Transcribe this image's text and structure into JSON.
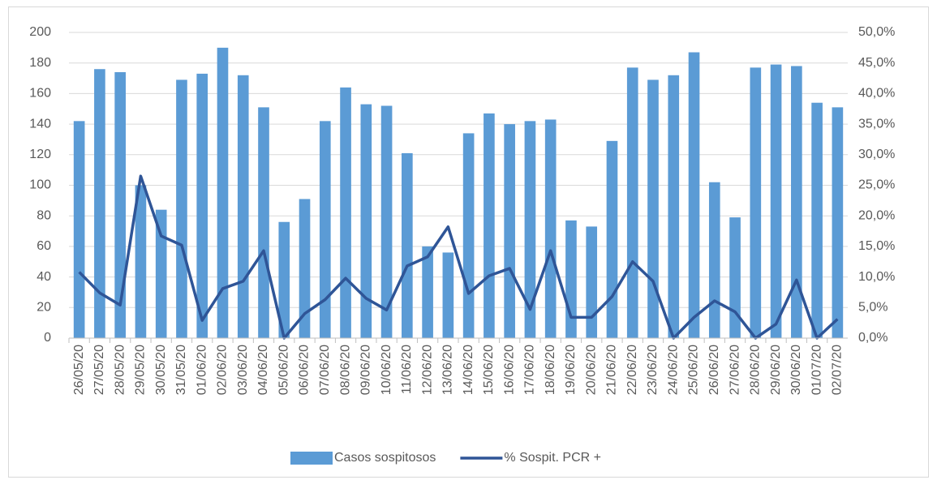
{
  "chart_data": {
    "type": "bar",
    "categories": [
      "26/05/20",
      "27/05/20",
      "28/05/20",
      "29/05/20",
      "30/05/20",
      "31/05/20",
      "01/06/20",
      "02/06/20",
      "03/06/20",
      "04/06/20",
      "05/06/20",
      "06/06/20",
      "07/06/20",
      "08/06/20",
      "09/06/20",
      "10/06/20",
      "11/06/20",
      "12/06/20",
      "13/06/20",
      "14/06/20",
      "15/06/20",
      "16/06/20",
      "17/06/20",
      "18/06/20",
      "19/06/20",
      "20/06/20",
      "21/06/20",
      "22/06/20",
      "23/06/20",
      "24/06/20",
      "25/06/20",
      "26/06/20",
      "27/06/20",
      "28/06/20",
      "29/06/20",
      "30/06/20",
      "01/07/20",
      "02/07/20"
    ],
    "series": [
      {
        "name": "Casos sospitosos",
        "type": "bar",
        "color": "#5b9bd5",
        "values": [
          142,
          176,
          174,
          100,
          84,
          169,
          173,
          190,
          172,
          151,
          76,
          91,
          142,
          164,
          153,
          152,
          121,
          60,
          56,
          134,
          147,
          140,
          142,
          143,
          77,
          73,
          129,
          177,
          169,
          172,
          187,
          102,
          79,
          177,
          179,
          178,
          154,
          151
        ]
      },
      {
        "name": "% Sospit. PCR +",
        "type": "line",
        "axis": "y2",
        "color": "#2f5597",
        "values": [
          10.8,
          7.4,
          5.4,
          26.5,
          16.7,
          15.2,
          2.9,
          8.1,
          9.3,
          14.3,
          0,
          4.0,
          6.3,
          9.8,
          6.5,
          4.6,
          11.8,
          13.3,
          18.2,
          7.3,
          10.2,
          11.4,
          4.7,
          14.3,
          3.4,
          3.4,
          6.8,
          12.5,
          9.3,
          0,
          3.4,
          6.1,
          4.3,
          0,
          2.3,
          9.5,
          0,
          3.1
        ]
      }
    ],
    "ylim": [
      0,
      200
    ],
    "yticks": [
      0,
      20,
      40,
      60,
      80,
      100,
      120,
      140,
      160,
      180,
      200
    ],
    "y2lim": [
      0,
      50
    ],
    "y2ticks": [
      {
        "value": 0,
        "label": "0,0%"
      },
      {
        "value": 5,
        "label": "5,0%"
      },
      {
        "value": 10,
        "label": "10,0%"
      },
      {
        "value": 15,
        "label": "15,0%"
      },
      {
        "value": 20,
        "label": "20,0%"
      },
      {
        "value": 25,
        "label": "25,0%"
      },
      {
        "value": 30,
        "label": "30,0%"
      },
      {
        "value": 35,
        "label": "35,0%"
      },
      {
        "value": 40,
        "label": "40,0%"
      },
      {
        "value": 45,
        "label": "45,0%"
      },
      {
        "value": 50,
        "label": "50,0%"
      }
    ],
    "grid": true,
    "legend": "bottom"
  }
}
